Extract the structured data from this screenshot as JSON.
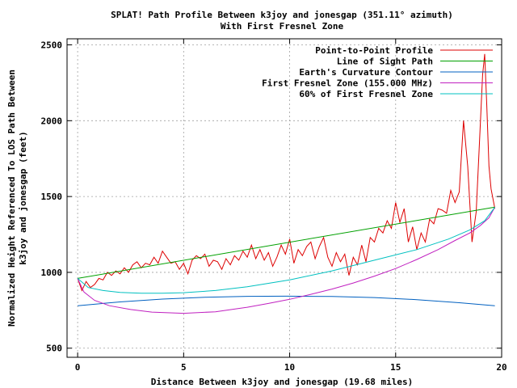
{
  "chart_data": {
    "type": "line",
    "title": "SPLAT! Path Profile Between k3joy and jonesgap (351.11° azimuth)",
    "subtitle": "With First Fresnel Zone",
    "xlabel": "Distance Between k3joy and jonesgap (19.68 miles)",
    "ylabel_line1": "Normalized Height Referenced To LOS Path Between",
    "ylabel_line2": "k3joy and jonesgap (feet)",
    "xlim": [
      -0.5,
      20
    ],
    "ylim": [
      440,
      2540
    ],
    "xticks": [
      0,
      5,
      10,
      15,
      20
    ],
    "yticks": [
      500,
      1000,
      1500,
      2000,
      2500
    ],
    "grid": true,
    "legend_position": "top-right",
    "series": [
      {
        "name": "Point-to-Point Profile",
        "color": "#dd0000",
        "x": [
          0,
          0.2,
          0.4,
          0.6,
          0.8,
          1.0,
          1.2,
          1.4,
          1.6,
          1.8,
          2.0,
          2.2,
          2.4,
          2.6,
          2.8,
          3.0,
          3.2,
          3.4,
          3.6,
          3.8,
          4.0,
          4.2,
          4.4,
          4.6,
          4.8,
          5.0,
          5.2,
          5.4,
          5.6,
          5.8,
          6.0,
          6.2,
          6.4,
          6.6,
          6.8,
          7.0,
          7.2,
          7.4,
          7.6,
          7.8,
          8.0,
          8.2,
          8.4,
          8.6,
          8.8,
          9.0,
          9.2,
          9.4,
          9.6,
          9.8,
          10.0,
          10.2,
          10.4,
          10.6,
          10.8,
          11.0,
          11.2,
          11.4,
          11.6,
          11.8,
          12.0,
          12.2,
          12.4,
          12.6,
          12.8,
          13.0,
          13.2,
          13.4,
          13.6,
          13.8,
          14.0,
          14.2,
          14.4,
          14.6,
          14.8,
          15.0,
          15.2,
          15.4,
          15.6,
          15.8,
          16.0,
          16.2,
          16.4,
          16.6,
          16.8,
          17.0,
          17.2,
          17.4,
          17.6,
          17.8,
          18.0,
          18.2,
          18.4,
          18.6,
          18.8,
          19.0,
          19.1,
          19.2,
          19.3,
          19.4,
          19.5,
          19.68
        ],
        "values": [
          960,
          880,
          940,
          900,
          920,
          960,
          950,
          1000,
          980,
          1010,
          990,
          1030,
          1000,
          1050,
          1070,
          1030,
          1060,
          1050,
          1100,
          1060,
          1140,
          1100,
          1060,
          1070,
          1020,
          1060,
          990,
          1080,
          1110,
          1090,
          1120,
          1040,
          1080,
          1070,
          1020,
          1090,
          1050,
          1110,
          1080,
          1140,
          1100,
          1180,
          1090,
          1150,
          1080,
          1130,
          1040,
          1100,
          1180,
          1120,
          1220,
          1060,
          1150,
          1110,
          1170,
          1200,
          1090,
          1170,
          1230,
          1100,
          1040,
          1130,
          1070,
          1120,
          980,
          1100,
          1050,
          1180,
          1070,
          1230,
          1200,
          1290,
          1260,
          1340,
          1290,
          1460,
          1330,
          1420,
          1200,
          1300,
          1150,
          1260,
          1200,
          1350,
          1320,
          1420,
          1410,
          1390,
          1540,
          1460,
          1530,
          2000,
          1700,
          1200,
          1400,
          2000,
          2300,
          2440,
          2100,
          1700,
          1550,
          1420
        ]
      },
      {
        "name": "Line of Sight Path",
        "color": "#00a000",
        "x": [
          0,
          19.68
        ],
        "values": [
          960,
          1430
        ]
      },
      {
        "name": "Earth's Curvature Contour",
        "color": "#0060c0",
        "x": [
          0,
          2,
          4,
          6,
          8,
          9.84,
          12,
          14,
          16,
          18,
          19.68
        ],
        "values": [
          780,
          805,
          824,
          836,
          842,
          843,
          841,
          834,
          820,
          800,
          780
        ]
      },
      {
        "name": "First Fresnel Zone (155.000 MHz)",
        "color": "#c020c0",
        "x": [
          0,
          0.3,
          0.8,
          1.5,
          2.5,
          3.5,
          5.0,
          6.5,
          8.0,
          9.0,
          10.0,
          11.0,
          12.0,
          13.0,
          14.0,
          15.0,
          16.0,
          17.0,
          17.8,
          18.5,
          19.0,
          19.4,
          19.68
        ],
        "values": [
          960,
          870,
          815,
          780,
          755,
          738,
          730,
          740,
          770,
          795,
          822,
          855,
          890,
          930,
          975,
          1025,
          1085,
          1150,
          1210,
          1260,
          1310,
          1360,
          1430
        ]
      },
      {
        "name": "60% of First Fresnel Zone",
        "color": "#00c0c0",
        "x": [
          0,
          0.5,
          1.2,
          2.0,
          3.0,
          4.0,
          5.0,
          6.5,
          8.0,
          10.0,
          12.0,
          14.0,
          16.0,
          17.5,
          18.5,
          19.2,
          19.68
        ],
        "values": [
          960,
          900,
          880,
          868,
          862,
          862,
          866,
          880,
          905,
          950,
          1010,
          1080,
          1150,
          1220,
          1280,
          1340,
          1430
        ]
      }
    ]
  }
}
